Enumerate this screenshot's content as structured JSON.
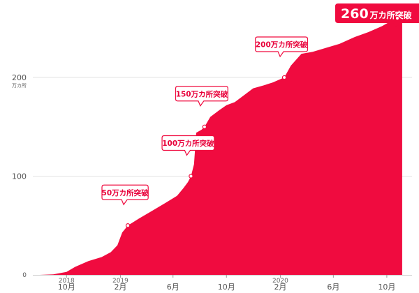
{
  "theme": {
    "accent": "#f00b3f",
    "grid": "#e3e3e3"
  },
  "chart_data": {
    "type": "area",
    "title": "",
    "xlabel": "",
    "ylabel": "",
    "y_unit": "万カ所",
    "ylim": [
      0,
      270
    ],
    "xlim": [
      "2018-08-01",
      "2020-11-10"
    ],
    "grid": true,
    "yticks": [
      {
        "value": 0,
        "label": "0"
      },
      {
        "value": 100,
        "label": "100"
      },
      {
        "value": 200,
        "label": "200"
      }
    ],
    "xticks": [
      {
        "date": "2018-10-01",
        "label": "10月",
        "year": "2018"
      },
      {
        "date": "2019-02-01",
        "label": "2月",
        "year": "2019"
      },
      {
        "date": "2019-06-01",
        "label": "6月",
        "year": ""
      },
      {
        "date": "2019-10-01",
        "label": "10月",
        "year": ""
      },
      {
        "date": "2020-02-01",
        "label": "2月",
        "year": "2020"
      },
      {
        "date": "2020-06-01",
        "label": "6月",
        "year": ""
      },
      {
        "date": "2020-10-01",
        "label": "10月",
        "year": ""
      }
    ],
    "series": [
      {
        "points": [
          [
            "2018-08-01",
            0
          ],
          [
            "2018-09-01",
            0.5
          ],
          [
            "2018-10-01",
            3
          ],
          [
            "2018-10-20",
            8
          ],
          [
            "2018-11-20",
            14
          ],
          [
            "2018-12-20",
            18
          ],
          [
            "2019-01-10",
            23
          ],
          [
            "2019-01-25",
            30
          ],
          [
            "2019-02-05",
            43
          ],
          [
            "2019-02-18",
            50
          ],
          [
            "2019-03-15",
            57
          ],
          [
            "2019-04-15",
            65
          ],
          [
            "2019-05-15",
            73
          ],
          [
            "2019-06-10",
            80
          ],
          [
            "2019-06-25",
            88
          ],
          [
            "2019-07-05",
            94
          ],
          [
            "2019-07-12",
            100
          ],
          [
            "2019-07-19",
            112
          ],
          [
            "2019-07-24",
            144
          ],
          [
            "2019-08-05",
            147
          ],
          [
            "2019-08-12",
            150
          ],
          [
            "2019-08-25",
            160
          ],
          [
            "2019-09-15",
            167
          ],
          [
            "2019-10-01",
            172
          ],
          [
            "2019-10-20",
            175
          ],
          [
            "2019-11-10",
            182
          ],
          [
            "2019-12-01",
            189
          ],
          [
            "2019-12-25",
            192
          ],
          [
            "2020-01-15",
            195
          ],
          [
            "2020-02-10",
            200
          ],
          [
            "2020-02-25",
            212
          ],
          [
            "2020-03-20",
            224
          ],
          [
            "2020-04-15",
            226
          ],
          [
            "2020-05-15",
            230
          ],
          [
            "2020-06-15",
            234
          ],
          [
            "2020-07-20",
            241
          ],
          [
            "2020-08-20",
            246
          ],
          [
            "2020-09-20",
            252
          ],
          [
            "2020-10-10",
            257
          ],
          [
            "2020-10-25",
            260
          ],
          [
            "2020-11-05",
            261
          ]
        ]
      }
    ],
    "annotations": [
      {
        "date": "2019-02-18",
        "value": 50,
        "label": "50万カ所突破"
      },
      {
        "date": "2019-07-12",
        "value": 100,
        "label": "100万カ所突破"
      },
      {
        "date": "2019-08-12",
        "value": 150,
        "label": "150万カ所突破"
      },
      {
        "date": "2020-02-10",
        "value": 200,
        "label": "200万カ所突破"
      }
    ],
    "highlight": {
      "date": "2020-10-25",
      "value": 260,
      "number": "260",
      "text": "万カ所突破"
    }
  }
}
